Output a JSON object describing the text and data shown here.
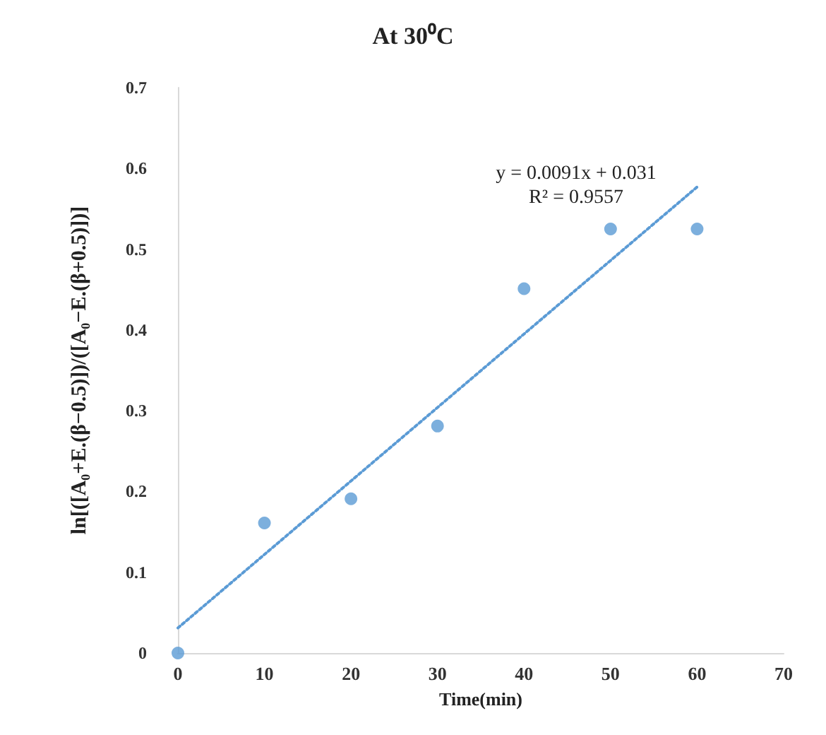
{
  "chart_data": {
    "type": "scatter",
    "title": "At 30⁰C",
    "xlabel": "Time(min)",
    "ylabel": "ln[([A₀+E.(β−0.5)])/([A₀−E.(β+0.5)])]",
    "x": [
      0,
      10,
      20,
      30,
      40,
      50,
      60
    ],
    "series": [
      {
        "color": "#5b9bd5",
        "values": [
          0,
          0.161,
          0.191,
          0.281,
          0.451,
          0.525,
          0.525
        ],
        "marker": "circle"
      },
      {
        "type": "line",
        "color": "#5b9bd5",
        "x": [
          0,
          60
        ],
        "values": [
          0.031,
          0.577
        ],
        "marker": "none",
        "line_style": "dotted"
      }
    ],
    "annotations": [
      "y = 0.0091x + 0.031",
      "R² = 0.9557"
    ],
    "xlim": [
      0,
      70
    ],
    "xticks": [
      0,
      10,
      20,
      30,
      40,
      50,
      60,
      70
    ],
    "ylim": [
      0,
      0.7
    ],
    "yticks": [
      0,
      0.1,
      0.2,
      0.3,
      0.4,
      0.5,
      0.6,
      0.7
    ],
    "grid": false
  }
}
